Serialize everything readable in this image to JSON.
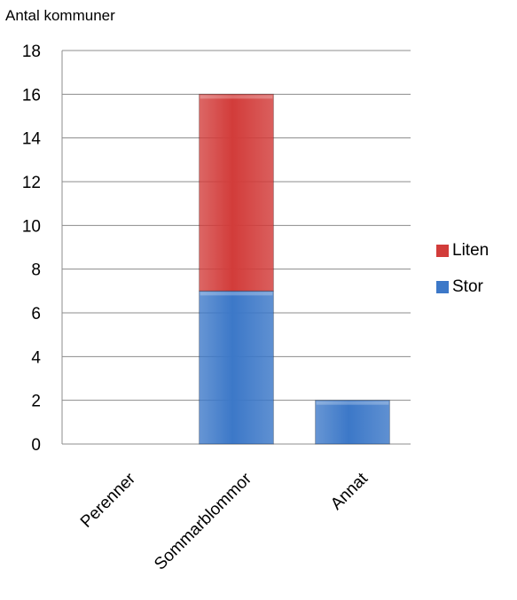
{
  "chart_data": {
    "type": "bar",
    "stacked": true,
    "categories": [
      "Perenner",
      "Sommarblommor",
      "Annat"
    ],
    "series": [
      {
        "name": "Stor",
        "values": [
          0,
          7,
          2
        ],
        "color": "#3c78c8"
      },
      {
        "name": "Liten",
        "values": [
          0,
          9,
          0
        ],
        "color": "#d23c3a"
      }
    ],
    "title": "",
    "xlabel": "",
    "ylabel": "Antal kommuner",
    "ylim": [
      0,
      18
    ],
    "yticks": [
      "0",
      "2",
      "4",
      "6",
      "8",
      "10",
      "12",
      "14",
      "16",
      "18"
    ],
    "grid": true,
    "legend": {
      "placement": "right",
      "entries": [
        "Liten",
        "Stor"
      ]
    }
  }
}
